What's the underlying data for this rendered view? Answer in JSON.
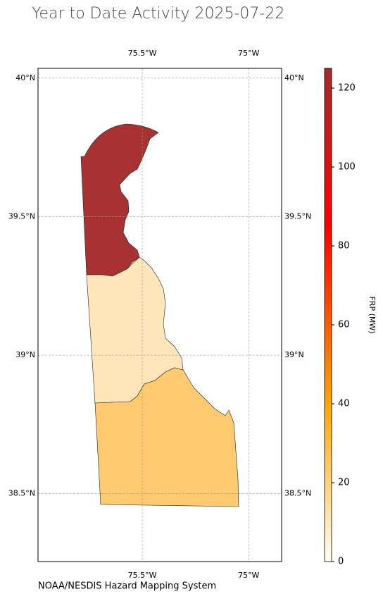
{
  "chart_data": {
    "type": "choropleth",
    "title": "Year to Date Activity 2025-07-22",
    "source": "NOAA/NESDIS Hazard Mapping System",
    "colorbar_label": "FRP (MW)",
    "clim": [
      0,
      125
    ],
    "colorbar_ticks": [
      0,
      20,
      40,
      60,
      80,
      100,
      120
    ],
    "xlim": [
      -75.99,
      -74.845
    ],
    "ylim": [
      38.255,
      40.035
    ],
    "xticks": [
      {
        "value": -75.5,
        "label": "75.5°W"
      },
      {
        "value": -75,
        "label": "75°W"
      }
    ],
    "yticks": [
      {
        "value": 40,
        "label": "40°N"
      },
      {
        "value": 39.5,
        "label": "39.5°N"
      },
      {
        "value": 39,
        "label": "39°N"
      },
      {
        "value": 38.5,
        "label": "38.5°N"
      }
    ],
    "grid": true,
    "regions": [
      {
        "value": 125,
        "color": "#a83232"
      },
      {
        "value": 10,
        "color": "#ffe6ba"
      },
      {
        "value": 25,
        "color": "#ffc970"
      }
    ]
  }
}
